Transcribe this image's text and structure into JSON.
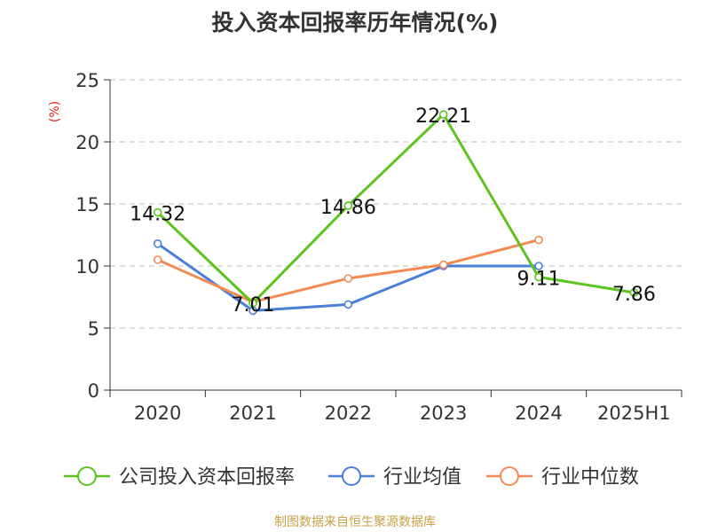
{
  "chart_data": {
    "type": "line",
    "title": "投入资本回报率历年情况(%)",
    "ylabel": "(%)",
    "xlabel": "",
    "categories": [
      "2020",
      "2021",
      "2022",
      "2023",
      "2024",
      "2025H1"
    ],
    "ylim": [
      0,
      25
    ],
    "yticks": [
      0,
      5,
      10,
      15,
      20,
      25
    ],
    "grid": true,
    "legend_position": "bottom",
    "series": [
      {
        "name": "公司投入资本回报率",
        "color": "#5cc41e",
        "values": [
          14.32,
          7.01,
          14.86,
          22.21,
          9.11,
          7.86
        ],
        "labels": [
          "14.32",
          "7.01",
          "14.86",
          "22.21",
          "9.11",
          "7.86"
        ]
      },
      {
        "name": "行业均值",
        "color": "#4a7fd8",
        "values": [
          11.8,
          6.4,
          6.9,
          10.0,
          10.0,
          null
        ]
      },
      {
        "name": "行业中位数",
        "color": "#f28a54",
        "values": [
          10.5,
          7.1,
          9.0,
          10.1,
          12.1,
          null
        ]
      }
    ]
  },
  "source": "制图数据来自恒生聚源数据库"
}
